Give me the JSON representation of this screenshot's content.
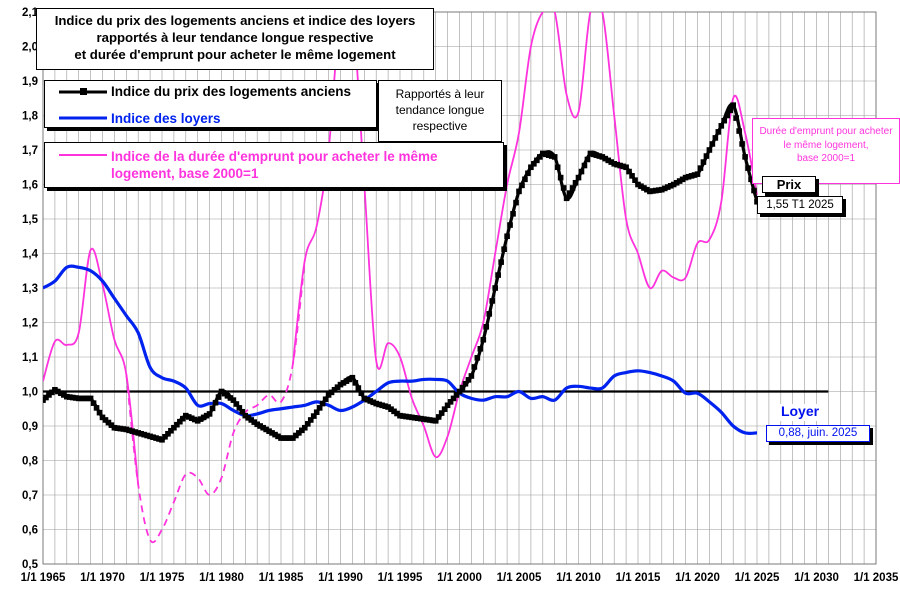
{
  "title": {
    "line1": "Indice du prix des logements anciens et indice des loyers",
    "line2": "rapportés à leur tendance longue respective",
    "line3": "et durée d'emprunt pour acheter le même logement"
  },
  "legend": {
    "price": "Indice du prix des logements anciens",
    "rent": "Indice des loyers",
    "duration_line1": "Indice de la durée d'emprunt pour acheter le même",
    "duration_line2": "logement, base 2000=1"
  },
  "note": {
    "line1": "Rapportés à leur",
    "line2": "tendance longue",
    "line3": "respective"
  },
  "duration_note": {
    "line1": "Durée d'emprunt pour acheter",
    "line2": "le même logement,",
    "line3": "base 2000=1"
  },
  "price_label": {
    "title": "Prix",
    "value": "1,55 T1 2025"
  },
  "rent_label": {
    "title": "Loyer",
    "value": "0,88, juin. 2025"
  },
  "colors": {
    "price": "#000000",
    "rent": "#0022ee",
    "duration": "#ff33dd",
    "grid": "#9a9a9a",
    "reference": "#000000"
  },
  "chart_data": {
    "type": "line",
    "x_range": [
      1965,
      2035
    ],
    "ylim": [
      0.5,
      2.1
    ],
    "y_ticks": [
      "0,5",
      "0,6",
      "0,7",
      "0,8",
      "0,9",
      "1,0",
      "1,1",
      "1,2",
      "1,3",
      "1,4",
      "1,5",
      "1,6",
      "1,7",
      "1,8",
      "1,9",
      "2,0",
      "2,1"
    ],
    "x_ticks": [
      "1/1 1965",
      "1/1 1970",
      "1/1 1975",
      "1/1 1980",
      "1/1 1985",
      "1/1 1990",
      "1/1 1995",
      "1/1 2000",
      "1/1 2005",
      "1/1 2010",
      "1/1 2015",
      "1/1 2020",
      "1/1 2025",
      "1/1 2030",
      "1/1 2035"
    ],
    "grid": true,
    "reference_line": {
      "y": 1.0,
      "x_from": 1965,
      "x_to": 2031
    },
    "series": [
      {
        "name": "Indice du prix des logements anciens",
        "color": "#000000",
        "markers": true,
        "points": [
          [
            1965,
            0.975
          ],
          [
            1966,
            1.005
          ],
          [
            1967,
            0.985
          ],
          [
            1968,
            0.98
          ],
          [
            1969,
            0.98
          ],
          [
            1970,
            0.925
          ],
          [
            1971,
            0.895
          ],
          [
            1972,
            0.89
          ],
          [
            1973,
            0.88
          ],
          [
            1974,
            0.87
          ],
          [
            1975,
            0.86
          ],
          [
            1976,
            0.895
          ],
          [
            1977,
            0.93
          ],
          [
            1978,
            0.915
          ],
          [
            1979,
            0.935
          ],
          [
            1980,
            1.0
          ],
          [
            1981,
            0.975
          ],
          [
            1982,
            0.93
          ],
          [
            1983,
            0.905
          ],
          [
            1984,
            0.885
          ],
          [
            1985,
            0.865
          ],
          [
            1986,
            0.865
          ],
          [
            1987,
            0.895
          ],
          [
            1988,
            0.94
          ],
          [
            1989,
            0.99
          ],
          [
            1990,
            1.02
          ],
          [
            1991,
            1.04
          ],
          [
            1992,
            0.98
          ],
          [
            1993,
            0.965
          ],
          [
            1994,
            0.955
          ],
          [
            1995,
            0.93
          ],
          [
            1996,
            0.925
          ],
          [
            1997,
            0.92
          ],
          [
            1998,
            0.915
          ],
          [
            1999,
            0.96
          ],
          [
            2000,
            1.0
          ],
          [
            2001,
            1.045
          ],
          [
            2002,
            1.15
          ],
          [
            2003,
            1.3
          ],
          [
            2004,
            1.45
          ],
          [
            2005,
            1.58
          ],
          [
            2006,
            1.65
          ],
          [
            2007,
            1.69
          ],
          [
            2008,
            1.68
          ],
          [
            2009,
            1.56
          ],
          [
            2010,
            1.62
          ],
          [
            2011,
            1.69
          ],
          [
            2012,
            1.68
          ],
          [
            2013,
            1.66
          ],
          [
            2014,
            1.65
          ],
          [
            2015,
            1.6
          ],
          [
            2016,
            1.58
          ],
          [
            2017,
            1.585
          ],
          [
            2018,
            1.6
          ],
          [
            2019,
            1.62
          ],
          [
            2020,
            1.63
          ],
          [
            2021,
            1.7
          ],
          [
            2022,
            1.77
          ],
          [
            2023,
            1.83
          ],
          [
            2024,
            1.68
          ],
          [
            2025,
            1.55
          ]
        ]
      },
      {
        "name": "Indice des loyers",
        "color": "#0022ee",
        "markers": false,
        "points": [
          [
            1965,
            1.3
          ],
          [
            1966,
            1.32
          ],
          [
            1967,
            1.36
          ],
          [
            1968,
            1.36
          ],
          [
            1969,
            1.35
          ],
          [
            1970,
            1.32
          ],
          [
            1971,
            1.27
          ],
          [
            1972,
            1.22
          ],
          [
            1973,
            1.17
          ],
          [
            1974,
            1.07
          ],
          [
            1975,
            1.04
          ],
          [
            1976,
            1.03
          ],
          [
            1977,
            1.01
          ],
          [
            1978,
            0.96
          ],
          [
            1979,
            0.965
          ],
          [
            1980,
            0.965
          ],
          [
            1981,
            0.945
          ],
          [
            1982,
            0.93
          ],
          [
            1983,
            0.935
          ],
          [
            1984,
            0.945
          ],
          [
            1985,
            0.95
          ],
          [
            1986,
            0.955
          ],
          [
            1987,
            0.96
          ],
          [
            1988,
            0.97
          ],
          [
            1989,
            0.96
          ],
          [
            1990,
            0.945
          ],
          [
            1991,
            0.955
          ],
          [
            1992,
            0.975
          ],
          [
            1993,
            1.0
          ],
          [
            1994,
            1.025
          ],
          [
            1995,
            1.03
          ],
          [
            1996,
            1.03
          ],
          [
            1997,
            1.035
          ],
          [
            1998,
            1.035
          ],
          [
            1999,
            1.03
          ],
          [
            2000,
            0.995
          ],
          [
            2001,
            0.98
          ],
          [
            2002,
            0.975
          ],
          [
            2003,
            0.985
          ],
          [
            2004,
            0.985
          ],
          [
            2005,
            1.0
          ],
          [
            2006,
            0.98
          ],
          [
            2007,
            0.985
          ],
          [
            2008,
            0.975
          ],
          [
            2009,
            1.01
          ],
          [
            2010,
            1.015
          ],
          [
            2011,
            1.01
          ],
          [
            2012,
            1.01
          ],
          [
            2013,
            1.045
          ],
          [
            2014,
            1.055
          ],
          [
            2015,
            1.06
          ],
          [
            2016,
            1.055
          ],
          [
            2017,
            1.045
          ],
          [
            2018,
            1.03
          ],
          [
            2019,
            0.995
          ],
          [
            2020,
            0.995
          ],
          [
            2021,
            0.97
          ],
          [
            2022,
            0.94
          ],
          [
            2023,
            0.9
          ],
          [
            2024,
            0.88
          ],
          [
            2025,
            0.88
          ]
        ]
      },
      {
        "name": "Indice de la durée d'emprunt pour acheter le même logement, base 2000=1",
        "color": "#ff33dd",
        "markers": false,
        "dashed_range": [
          1972.5,
          1986.5
        ],
        "points": [
          [
            1965,
            1.03
          ],
          [
            1966,
            1.145
          ],
          [
            1967,
            1.135
          ],
          [
            1968,
            1.17
          ],
          [
            1969,
            1.41
          ],
          [
            1970,
            1.31
          ],
          [
            1971,
            1.15
          ],
          [
            1972,
            1.05
          ],
          [
            1973,
            0.73
          ],
          [
            1974,
            0.57
          ],
          [
            1975,
            0.6
          ],
          [
            1976,
            0.68
          ],
          [
            1977,
            0.76
          ],
          [
            1978,
            0.75
          ],
          [
            1979,
            0.7
          ],
          [
            1980,
            0.75
          ],
          [
            1981,
            0.88
          ],
          [
            1982,
            0.94
          ],
          [
            1983,
            0.96
          ],
          [
            1984,
            0.99
          ],
          [
            1985,
            0.97
          ],
          [
            1986,
            1.08
          ],
          [
            1987,
            1.38
          ],
          [
            1988,
            1.48
          ],
          [
            1989,
            1.7
          ],
          [
            1990,
            2.1
          ],
          [
            1991,
            2.1
          ],
          [
            1992,
            1.6
          ],
          [
            1993,
            1.09
          ],
          [
            1994,
            1.14
          ],
          [
            1995,
            1.1
          ],
          [
            1996,
            0.98
          ],
          [
            1997,
            0.9
          ],
          [
            1998,
            0.81
          ],
          [
            1999,
            0.87
          ],
          [
            2000,
            1.0
          ],
          [
            2001,
            1.1
          ],
          [
            2002,
            1.2
          ],
          [
            2003,
            1.4
          ],
          [
            2004,
            1.6
          ],
          [
            2005,
            1.75
          ],
          [
            2006,
            2.0
          ],
          [
            2007,
            2.1
          ],
          [
            2008,
            2.1
          ],
          [
            2009,
            1.86
          ],
          [
            2010,
            1.81
          ],
          [
            2011,
            2.1
          ],
          [
            2012,
            2.1
          ],
          [
            2013,
            1.8
          ],
          [
            2014,
            1.5
          ],
          [
            2015,
            1.4
          ],
          [
            2016,
            1.3
          ],
          [
            2017,
            1.35
          ],
          [
            2018,
            1.33
          ],
          [
            2019,
            1.33
          ],
          [
            2020,
            1.43
          ],
          [
            2021,
            1.44
          ],
          [
            2022,
            1.55
          ],
          [
            2023,
            1.85
          ],
          [
            2024,
            1.75
          ],
          [
            2025,
            1.57
          ]
        ]
      }
    ]
  }
}
